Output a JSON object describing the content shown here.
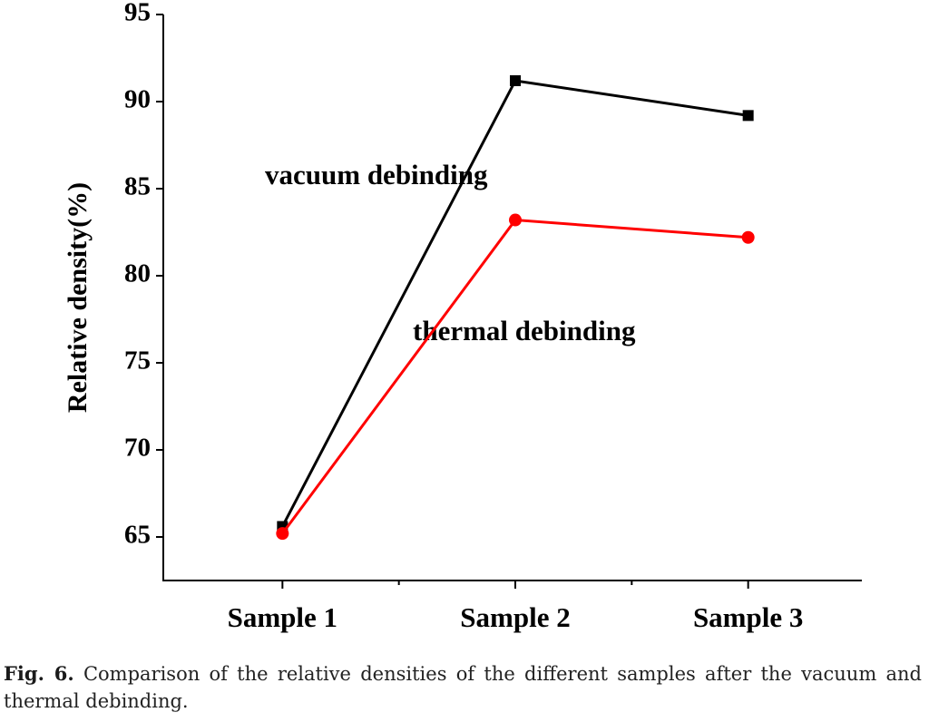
{
  "chart_data": {
    "type": "line",
    "y_label": "Relative density(%)",
    "categories": [
      "Sample 1",
      "Sample 2",
      "Sample 3"
    ],
    "series": [
      {
        "name": "vacuum debinding",
        "color": "#000000",
        "marker": "square",
        "values": [
          65.6,
          91.2,
          89.2
        ]
      },
      {
        "name": "thermal debinding",
        "color": "#ff0000",
        "marker": "circle",
        "values": [
          65.2,
          83.2,
          82.2
        ]
      }
    ],
    "ylim": [
      62.5,
      95
    ],
    "yticks": [
      65,
      70,
      75,
      80,
      85,
      90,
      95
    ],
    "grid": false
  },
  "caption": {
    "label": "Fig. 6.",
    "text": "Comparison of the relative densities of the different samples after the vacuum and thermal debinding."
  }
}
